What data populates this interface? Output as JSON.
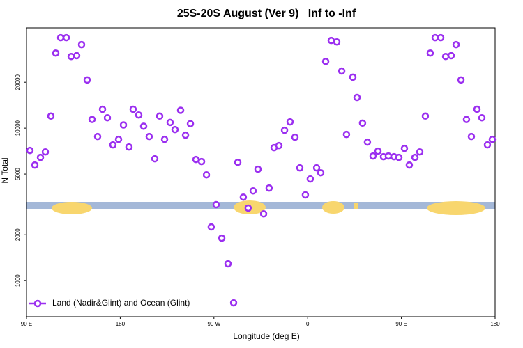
{
  "chart_data": {
    "type": "scatter",
    "title": "25S-20S August (Ver 9)   Inf to -Inf",
    "x_label": "Longitude (deg E)",
    "y_label": "N Total",
    "log_scale_y": true,
    "legend": "bottom-left",
    "xlim": [
      90,
      540
    ],
    "xticks": [
      {
        "value": 90,
        "label": "90 E"
      },
      180,
      {
        "value": 270,
        "label": "90 W"
      },
      {
        "value": 360,
        "label": "0"
      },
      {
        "value": 450,
        "label": "90 E"
      },
      {
        "value": 540,
        "label": "180"
      }
    ],
    "ylim": [
      580,
      45500
    ],
    "yticks": [
      1000,
      2000,
      5000,
      10000,
      20000
    ],
    "series": [
      {
        "name": "Land (Nadir&Glint) and Ocean (Glint)",
        "color": "#9b2ff0",
        "x": [
          93.3,
          98,
          103.4,
          108.1,
          113.4,
          118.1,
          122.8,
          128.2,
          132.9,
          138.2,
          142.9,
          148.3,
          153,
          158.3,
          163,
          167.7,
          173,
          178.4,
          183.1,
          188.4,
          192.4,
          197.8,
          202.5,
          207.8,
          213.2,
          217.9,
          222.6,
          227.9,
          232.6,
          238,
          242.7,
          247.4,
          252.7,
          258.1,
          262.8,
          267.4,
          272.1,
          277.5,
          283.5,
          288.9,
          292.9,
          298.2,
          302.9,
          307.6,
          312.3,
          317.7,
          323,
          327.7,
          332.4,
          337.8,
          343.1,
          347.8,
          352.5,
          357.8,
          362.5,
          368.6,
          372.6,
          377.3,
          382.6,
          388,
          392.7,
          397.3,
          403.4,
          407.4,
          412.7,
          417.4,
          422.8,
          427.5,
          432.8,
          437.5,
          442.9,
          447.6,
          452.9,
          457.6,
          463,
          467.7,
          473,
          477.7,
          482.4,
          487.8,
          492.5,
          497.8,
          502.5,
          507.2,
          512.5,
          517.2,
          522.6,
          527.3,
          532.6,
          537.3
        ],
        "values": [
          7140,
          5730,
          6430,
          6990,
          12000,
          31100,
          39200,
          39200,
          29500,
          29900,
          35300,
          20700,
          11400,
          8810,
          13300,
          11700,
          7770,
          8450,
          10500,
          7530,
          13300,
          12200,
          10300,
          8810,
          6300,
          12000,
          8450,
          10900,
          9790,
          13100,
          9000,
          10700,
          6230,
          6040,
          4940,
          2250,
          3150,
          1900,
          1290,
          715,
          5970,
          3530,
          2990,
          3880,
          5380,
          2740,
          4050,
          7450,
          7690,
          9690,
          11000,
          8720,
          5490,
          3650,
          4640,
          5490,
          5100,
          27400,
          37600,
          36800,
          23700,
          9100,
          21600,
          15900,
          10800,
          8100,
          6570,
          7070,
          6500,
          6570,
          6500,
          6430,
          7370,
          5730,
          6430,
          6990,
          12000,
          31100,
          39200,
          39200,
          29500,
          29900,
          35300,
          20700,
          11400,
          8810,
          13300,
          11700,
          7770,
          8450
        ]
      }
    ]
  }
}
